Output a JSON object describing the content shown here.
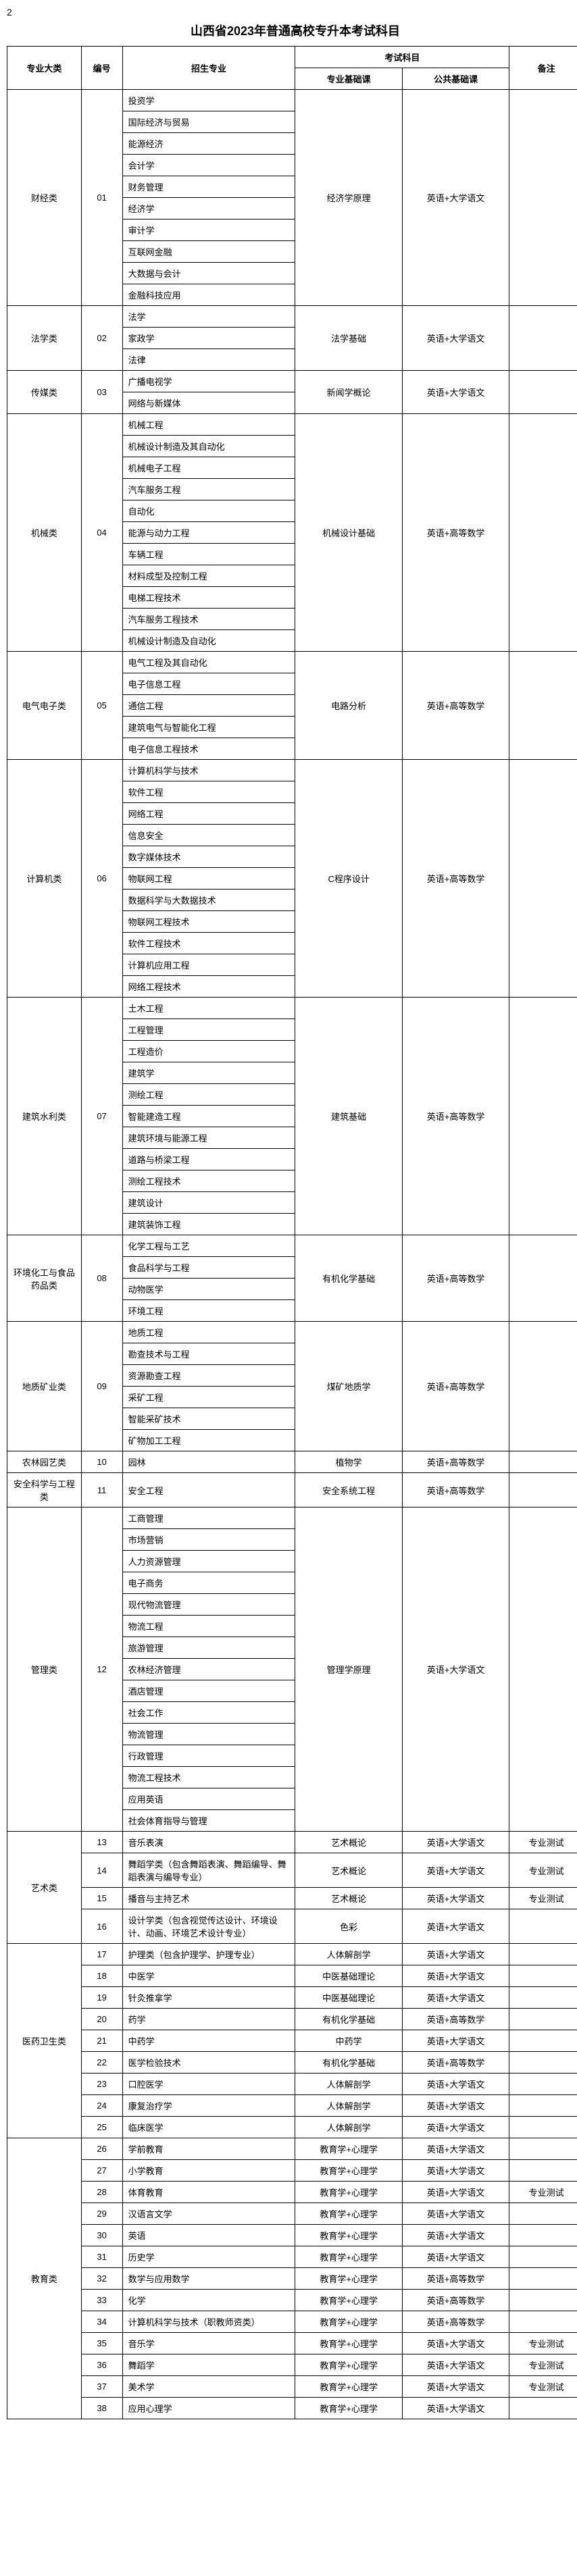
{
  "page_number": "2",
  "title": "山西省2023年普通高校专升本考试科目",
  "headers": {
    "category": "专业大类",
    "code": "编号",
    "major": "招生专业",
    "exam_subjects": "考试科目",
    "pro_basic": "专业基础课",
    "pub_basic": "公共基础课",
    "remark": "备注"
  },
  "groups": [
    {
      "category": "财经类",
      "code": "01",
      "pro_basic": "经济学原理",
      "pub_basic": "英语+大学语文",
      "remark": "",
      "majors": [
        "投资学",
        "国际经济与贸易",
        "能源经济",
        "会计学",
        "财务管理",
        "经济学",
        "审计学",
        "互联网金融",
        "大数据与会计",
        "金融科技应用"
      ]
    },
    {
      "category": "法学类",
      "code": "02",
      "pro_basic": "法学基础",
      "pub_basic": "英语+大学语文",
      "remark": "",
      "majors": [
        "法学",
        "家政学",
        "法律"
      ]
    },
    {
      "category": "传媒类",
      "code": "03",
      "pro_basic": "新闻学概论",
      "pub_basic": "英语+大学语文",
      "remark": "",
      "majors": [
        "广播电视学",
        "网络与新媒体"
      ]
    },
    {
      "category": "机械类",
      "code": "04",
      "pro_basic": "机械设计基础",
      "pub_basic": "英语+高等数学",
      "remark": "",
      "majors": [
        "机械工程",
        "机械设计制造及其自动化",
        "机械电子工程",
        "汽车服务工程",
        "自动化",
        "能源与动力工程",
        "车辆工程",
        "材料成型及控制工程",
        "电梯工程技术",
        "汽车服务工程技术",
        "机械设计制造及自动化"
      ]
    },
    {
      "category": "电气电子类",
      "code": "05",
      "pro_basic": "电路分析",
      "pub_basic": "英语+高等数学",
      "remark": "",
      "majors": [
        "电气工程及其自动化",
        "电子信息工程",
        "通信工程",
        "建筑电气与智能化工程",
        "电子信息工程技术"
      ]
    },
    {
      "category": "计算机类",
      "code": "06",
      "pro_basic": "C程序设计",
      "pub_basic": "英语+高等数学",
      "remark": "",
      "majors": [
        "计算机科学与技术",
        "软件工程",
        "网络工程",
        "信息安全",
        "数字媒体技术",
        "物联网工程",
        "数据科学与大数据技术",
        "物联网工程技术",
        "软件工程技术",
        "计算机应用工程",
        "网络工程技术"
      ]
    },
    {
      "category": "建筑水利类",
      "code": "07",
      "pro_basic": "建筑基础",
      "pub_basic": "英语+高等数学",
      "remark": "",
      "majors": [
        "土木工程",
        "工程管理",
        "工程造价",
        "建筑学",
        "测绘工程",
        "智能建造工程",
        "建筑环境与能源工程",
        "道路与桥梁工程",
        "测绘工程技术",
        "建筑设计",
        "建筑装饰工程"
      ]
    },
    {
      "category": "环境化工与食品药品类",
      "code": "08",
      "pro_basic": "有机化学基础",
      "pub_basic": "英语+高等数学",
      "remark": "",
      "majors": [
        "化学工程与工艺",
        "食品科学与工程",
        "动物医学",
        "环境工程"
      ]
    },
    {
      "category": "地质矿业类",
      "code": "09",
      "pro_basic": "煤矿地质学",
      "pub_basic": "英语+高等数学",
      "remark": "",
      "majors": [
        "地质工程",
        "勘查技术与工程",
        "资源勘查工程",
        "采矿工程",
        "智能采矿技术",
        "矿物加工工程"
      ]
    },
    {
      "category": "农林园艺类",
      "code": "10",
      "pro_basic": "植物学",
      "pub_basic": "英语+高等数学",
      "remark": "",
      "majors": [
        "园林"
      ]
    },
    {
      "category": "安全科学与工程类",
      "code": "11",
      "pro_basic": "安全系统工程",
      "pub_basic": "英语+高等数学",
      "remark": "",
      "majors": [
        "安全工程"
      ]
    },
    {
      "category": "管理类",
      "code": "12",
      "pro_basic": "管理学原理",
      "pub_basic": "英语+大学语文",
      "remark": "",
      "majors": [
        "工商管理",
        "市场营销",
        "人力资源管理",
        "电子商务",
        "现代物流管理",
        "物流工程",
        "旅游管理",
        "农林经济管理",
        "酒店管理",
        "社会工作",
        "物流管理",
        "行政管理",
        "物流工程技术",
        "应用英语",
        "社会体育指导与管理"
      ]
    }
  ],
  "art_category": "艺术类",
  "art_rows": [
    {
      "code": "13",
      "major": "音乐表演",
      "pro": "艺术概论",
      "pub": "英语+大学语文",
      "remark": "专业测试"
    },
    {
      "code": "14",
      "major": "舞蹈学类（包含舞蹈表演、舞蹈编导、舞蹈表演与编导专业）",
      "pro": "艺术概论",
      "pub": "英语+大学语文",
      "remark": "专业测试"
    },
    {
      "code": "15",
      "major": "播音与主持艺术",
      "pro": "艺术概论",
      "pub": "英语+大学语文",
      "remark": "专业测试"
    },
    {
      "code": "16",
      "major": "设计学类（包含视觉传达设计、环境设计、动画、环境艺术设计专业）",
      "pro": "色彩",
      "pub": "英语+大学语文",
      "remark": ""
    }
  ],
  "med_category": "医药卫生类",
  "med_rows": [
    {
      "code": "17",
      "major": "护理类（包含护理学、护理专业）",
      "pro": "人体解剖学",
      "pub": "英语+大学语文",
      "remark": ""
    },
    {
      "code": "18",
      "major": "中医学",
      "pro": "中医基础理论",
      "pub": "英语+大学语文",
      "remark": ""
    },
    {
      "code": "19",
      "major": "针灸推拿学",
      "pro": "中医基础理论",
      "pub": "英语+大学语文",
      "remark": ""
    },
    {
      "code": "20",
      "major": "药学",
      "pro": "有机化学基础",
      "pub": "英语+高等数学",
      "remark": ""
    },
    {
      "code": "21",
      "major": "中药学",
      "pro": "中药学",
      "pub": "英语+大学语文",
      "remark": ""
    },
    {
      "code": "22",
      "major": "医学检验技术",
      "pro": "有机化学基础",
      "pub": "英语+高等数学",
      "remark": ""
    },
    {
      "code": "23",
      "major": "口腔医学",
      "pro": "人体解剖学",
      "pub": "英语+大学语文",
      "remark": ""
    },
    {
      "code": "24",
      "major": "康复治疗学",
      "pro": "人体解剖学",
      "pub": "英语+大学语文",
      "remark": ""
    },
    {
      "code": "25",
      "major": "临床医学",
      "pro": "人体解剖学",
      "pub": "英语+大学语文",
      "remark": ""
    }
  ],
  "edu_category": "教育类",
  "edu_rows": [
    {
      "code": "26",
      "major": "学前教育",
      "pro": "教育学+心理学",
      "pub": "英语+大学语文",
      "remark": ""
    },
    {
      "code": "27",
      "major": "小学教育",
      "pro": "教育学+心理学",
      "pub": "英语+大学语文",
      "remark": ""
    },
    {
      "code": "28",
      "major": "体育教育",
      "pro": "教育学+心理学",
      "pub": "英语+大学语文",
      "remark": "专业测试"
    },
    {
      "code": "29",
      "major": "汉语言文学",
      "pro": "教育学+心理学",
      "pub": "英语+大学语文",
      "remark": ""
    },
    {
      "code": "30",
      "major": "英语",
      "pro": "教育学+心理学",
      "pub": "英语+大学语文",
      "remark": ""
    },
    {
      "code": "31",
      "major": "历史学",
      "pro": "教育学+心理学",
      "pub": "英语+大学语文",
      "remark": ""
    },
    {
      "code": "32",
      "major": "数学与应用数学",
      "pro": "教育学+心理学",
      "pub": "英语+高等数学",
      "remark": ""
    },
    {
      "code": "33",
      "major": "化学",
      "pro": "教育学+心理学",
      "pub": "英语+高等数学",
      "remark": ""
    },
    {
      "code": "34",
      "major": "计算机科学与技术（职教师资类）",
      "pro": "教育学+心理学",
      "pub": "英语+高等数学",
      "remark": ""
    },
    {
      "code": "35",
      "major": "音乐学",
      "pro": "教育学+心理学",
      "pub": "英语+大学语文",
      "remark": "专业测试"
    },
    {
      "code": "36",
      "major": "舞蹈学",
      "pro": "教育学+心理学",
      "pub": "英语+大学语文",
      "remark": "专业测试"
    },
    {
      "code": "37",
      "major": "美术学",
      "pro": "教育学+心理学",
      "pub": "英语+大学语文",
      "remark": "专业测试"
    },
    {
      "code": "38",
      "major": "应用心理学",
      "pro": "教育学+心理学",
      "pub": "英语+大学语文",
      "remark": ""
    }
  ]
}
